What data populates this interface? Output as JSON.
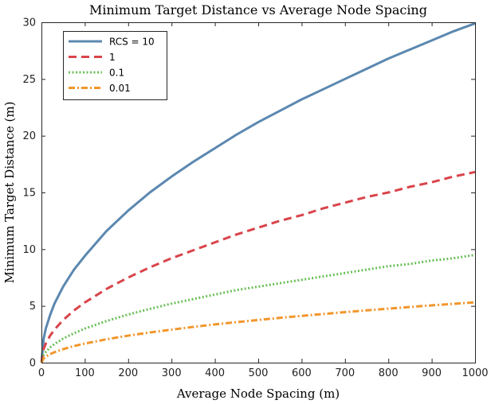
{
  "chart_data": {
    "type": "line",
    "title": "Minimum Target Distance vs Average Node Spacing",
    "xlabel": "Average Node Spacing (m)",
    "ylabel": "Minimum Target Distance (m)",
    "xlim": [
      0,
      1000
    ],
    "ylim": [
      0,
      30
    ],
    "xticks": [
      0,
      100,
      200,
      300,
      400,
      500,
      600,
      700,
      800,
      900,
      1000
    ],
    "yticks": [
      0,
      5,
      10,
      15,
      20,
      25,
      30
    ],
    "grid": false,
    "legend_position": "top-left",
    "x": [
      0,
      5,
      10,
      20,
      30,
      50,
      75,
      100,
      150,
      200,
      250,
      300,
      350,
      400,
      450,
      500,
      550,
      600,
      650,
      700,
      750,
      800,
      850,
      900,
      950,
      1000
    ],
    "series": [
      {
        "name": "RCS = 10",
        "color": "#5b88b0",
        "style": "solid",
        "values": [
          0,
          2.1,
          3.0,
          4.2,
          5.2,
          6.7,
          8.2,
          9.4,
          11.6,
          13.4,
          15.0,
          16.4,
          17.7,
          18.9,
          20.1,
          21.2,
          22.2,
          23.2,
          24.1,
          25.0,
          25.9,
          26.8,
          27.6,
          28.4,
          29.2,
          29.9
        ]
      },
      {
        "name": "1",
        "color": "#d9444b",
        "style": "dashed",
        "values": [
          0,
          1.19,
          1.68,
          2.38,
          2.91,
          3.76,
          4.6,
          5.3,
          6.5,
          7.5,
          8.4,
          9.2,
          9.9,
          10.6,
          11.3,
          11.9,
          12.5,
          13.0,
          13.6,
          14.1,
          14.6,
          15.0,
          15.5,
          15.9,
          16.4,
          16.8
        ]
      },
      {
        "name": "0.1",
        "color": "#6bbf59",
        "style": "dotted",
        "values": [
          0,
          0.67,
          0.95,
          1.34,
          1.64,
          2.12,
          2.59,
          3.0,
          3.67,
          4.24,
          4.74,
          5.2,
          5.6,
          6.0,
          6.4,
          6.7,
          7.0,
          7.3,
          7.6,
          7.9,
          8.2,
          8.5,
          8.7,
          9.0,
          9.2,
          9.5
        ]
      },
      {
        "name": "0.01",
        "color": "#f2962c",
        "style": "dashdot",
        "values": [
          0,
          0.38,
          0.53,
          0.75,
          0.92,
          1.19,
          1.46,
          1.68,
          2.06,
          2.38,
          2.66,
          2.91,
          3.15,
          3.37,
          3.57,
          3.76,
          3.95,
          4.12,
          4.29,
          4.45,
          4.61,
          4.76,
          4.91,
          5.05,
          5.18,
          5.32
        ]
      }
    ]
  }
}
